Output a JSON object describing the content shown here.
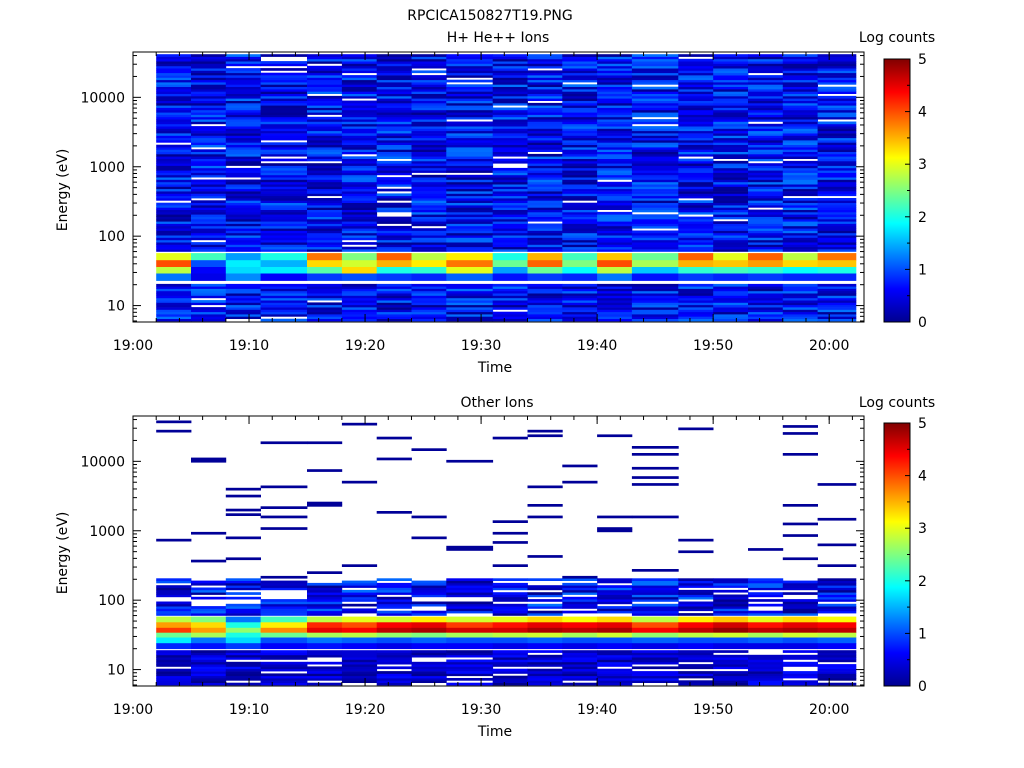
{
  "figure": {
    "title": "RPCICA150827T19.PNG"
  },
  "chart_data": [
    {
      "type": "heatmap",
      "title": "H+ He++ Ions",
      "xlabel": "Time",
      "ylabel": "Energy (eV)",
      "x_ticks": [
        "19:00",
        "19:10",
        "19:20",
        "19:30",
        "19:40",
        "19:50",
        "20:00"
      ],
      "x_range": [
        "19:00",
        "20:03"
      ],
      "y_ticks": [
        "10",
        "100",
        "1000",
        "10000"
      ],
      "y_scale": "log",
      "y_range": [
        5.8,
        45000
      ],
      "colorbar": {
        "label": "Log counts",
        "ticks": [
          "0",
          "1",
          "2",
          "3",
          "4",
          "5"
        ],
        "range": [
          0,
          5
        ]
      },
      "time_bins_start": [
        "19:02",
        "19:05",
        "19:08",
        "19:11",
        "19:15",
        "19:18",
        "19:21",
        "19:24",
        "19:27",
        "19:31",
        "19:34",
        "19:37",
        "19:40",
        "19:43",
        "19:47",
        "19:50",
        "19:53",
        "19:56",
        "19:59"
      ],
      "bands": [
        {
          "energy_range_eV": [
            45,
            57
          ],
          "log_counts": [
            3.0,
            2.2,
            1.4,
            2.0,
            3.8,
            2.5,
            3.9,
            2.8,
            3.2,
            2.0,
            3.5,
            2.2,
            3.4,
            2.4,
            3.9,
            3.0,
            3.9,
            2.8,
            3.8
          ]
        },
        {
          "energy_range_eV": [
            36,
            45
          ],
          "log_counts": [
            4.0,
            1.0,
            1.8,
            1.5,
            3.3,
            2.9,
            3.5,
            3.2,
            3.8,
            2.4,
            3.9,
            2.5,
            4.0,
            2.7,
            3.5,
            3.4,
            3.6,
            3.3,
            3.4
          ]
        },
        {
          "energy_range_eV": [
            29,
            36
          ],
          "log_counts": [
            2.8,
            0.6,
            1.7,
            1.8,
            2.3,
            3.3,
            2.0,
            2.1,
            3.0,
            1.4,
            2.4,
            1.9,
            2.8,
            1.6,
            2.1,
            2.2,
            2.1,
            1.9,
            2.0
          ]
        },
        {
          "energy_range_eV": [
            23,
            29
          ],
          "log_counts": [
            1.2,
            0.5,
            1.3,
            0.6,
            0.9,
            1.0,
            0.9,
            0.8,
            1.1,
            0.7,
            0.9,
            0.8,
            1.2,
            0.7,
            0.9,
            0.8,
            0.9,
            0.8,
            0.8
          ]
        }
      ],
      "background_log_counts": [
        0,
        1
      ]
    },
    {
      "type": "heatmap",
      "title": "Other Ions",
      "xlabel": "Time",
      "ylabel": "Energy (eV)",
      "x_ticks": [
        "19:00",
        "19:10",
        "19:20",
        "19:30",
        "19:40",
        "19:50",
        "20:00"
      ],
      "x_range": [
        "19:00",
        "20:03"
      ],
      "y_ticks": [
        "10",
        "100",
        "1000",
        "10000"
      ],
      "y_scale": "log",
      "y_range": [
        5.8,
        45000
      ],
      "colorbar": {
        "label": "Log counts",
        "ticks": [
          "0",
          "1",
          "2",
          "3",
          "4",
          "5"
        ],
        "range": [
          0,
          5
        ]
      },
      "time_bins_start": [
        "19:02",
        "19:05",
        "19:08",
        "19:11",
        "19:15",
        "19:18",
        "19:21",
        "19:24",
        "19:27",
        "19:31",
        "19:34",
        "19:37",
        "19:40",
        "19:43",
        "19:47",
        "19:50",
        "19:53",
        "19:56",
        "19:59"
      ],
      "bands": [
        {
          "energy_range_eV": [
            48,
            58
          ],
          "log_counts": [
            2.8,
            2.5,
            1.2,
            2.2,
            2.8,
            3.0,
            2.9,
            3.2,
            2.9,
            3.0,
            3.3,
            3.1,
            3.3,
            2.8,
            3.2,
            3.4,
            3.0,
            3.3,
            3.1
          ]
        },
        {
          "energy_range_eV": [
            40,
            48
          ],
          "log_counts": [
            3.6,
            3.3,
            2.0,
            3.2,
            4.2,
            4.0,
            4.4,
            4.5,
            4.1,
            4.3,
            4.5,
            4.4,
            4.5,
            4.0,
            4.4,
            4.6,
            4.3,
            4.5,
            4.4
          ]
        },
        {
          "energy_range_eV": [
            34,
            40
          ],
          "log_counts": [
            4.1,
            3.6,
            2.6,
            3.7,
            4.5,
            4.4,
            4.7,
            4.8,
            4.6,
            4.6,
            4.8,
            4.7,
            4.8,
            4.4,
            4.7,
            4.9,
            4.7,
            4.8,
            4.7
          ]
        },
        {
          "energy_range_eV": [
            29,
            34
          ],
          "log_counts": [
            2.4,
            2.7,
            2.0,
            2.4,
            2.7,
            2.8,
            2.6,
            2.5,
            2.7,
            2.8,
            2.9,
            2.7,
            2.9,
            2.6,
            2.8,
            2.9,
            2.7,
            2.9,
            2.8
          ]
        },
        {
          "energy_range_eV": [
            24,
            29
          ],
          "log_counts": [
            1.8,
            1.2,
            1.7,
            1.0,
            1.2,
            1.1,
            1.0,
            1.1,
            1.0,
            1.0,
            1.1,
            1.0,
            1.0,
            1.1,
            1.0,
            1.0,
            1.1,
            1.0,
            1.1
          ]
        },
        {
          "energy_range_eV": [
            20,
            24
          ],
          "log_counts": [
            0.8,
            0.7,
            0.9,
            0.6,
            0.7,
            0.6,
            0.5,
            0.6,
            0.6,
            0.5,
            0.6,
            0.5,
            0.6,
            0.5,
            0.6,
            0.5,
            0.5,
            0.5,
            0.6
          ]
        }
      ],
      "background_log_counts": [
        0,
        1
      ]
    }
  ]
}
